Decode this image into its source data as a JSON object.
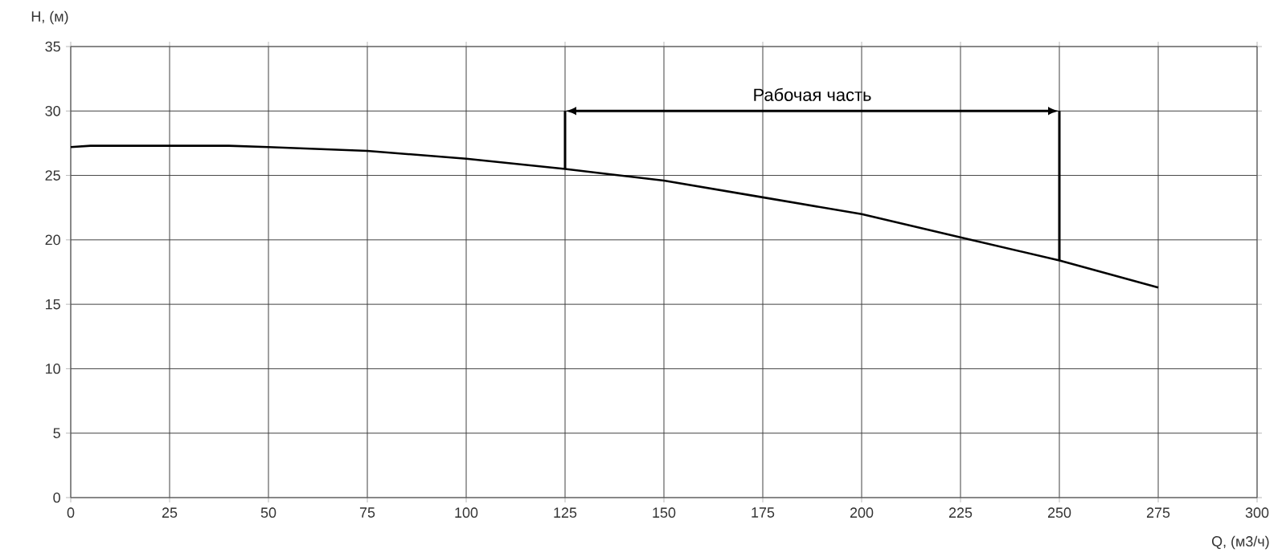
{
  "chart_data": {
    "type": "line",
    "xlabel": "Q, (м3/ч)",
    "ylabel": "H, (м)",
    "x": [
      0,
      5,
      25,
      40,
      50,
      75,
      100,
      125,
      150,
      175,
      200,
      225,
      250,
      275
    ],
    "series": [
      {
        "color": "#000000",
        "values": [
          27.2,
          27.3,
          27.3,
          27.3,
          27.2,
          26.9,
          26.3,
          25.5,
          24.6,
          23.3,
          22.0,
          20.2,
          18.4,
          16.3
        ]
      }
    ],
    "xlim": [
      0,
      300
    ],
    "ylim": [
      0,
      35
    ],
    "xticks": [
      0,
      25,
      50,
      75,
      100,
      125,
      150,
      175,
      200,
      225,
      250,
      275,
      300
    ],
    "yticks": [
      0,
      5,
      10,
      15,
      20,
      25,
      30,
      35
    ],
    "grid": true,
    "marker": "none",
    "line_style": "solid",
    "ref_lines": [
      {
        "axis": "x",
        "value": 125
      },
      {
        "axis": "x",
        "value": 250
      }
    ],
    "annotations": [
      "Рабочая часть"
    ]
  }
}
